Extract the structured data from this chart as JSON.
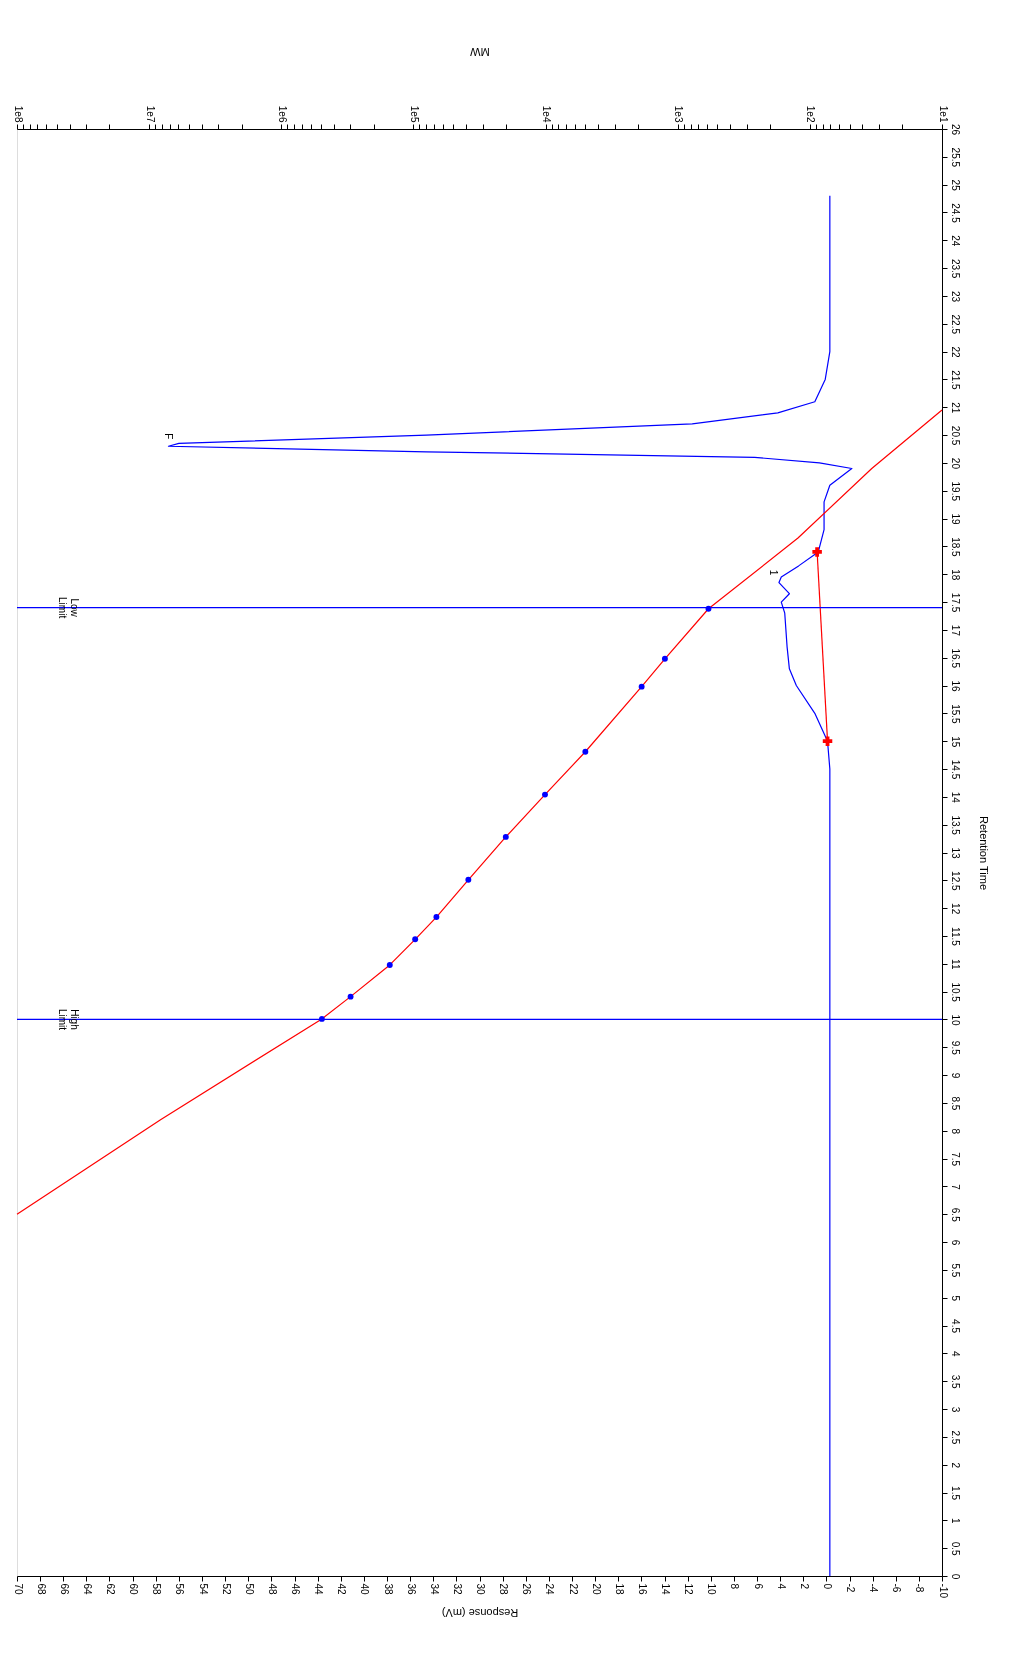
{
  "chart_data": {
    "type": "line",
    "xlabel": "Response (mV)",
    "ylabel": "Retention Time",
    "x2label": "MW",
    "xlim": [
      70,
      -10
    ],
    "xticks": [
      70,
      68,
      66,
      64,
      62,
      60,
      58,
      56,
      54,
      52,
      50,
      48,
      46,
      44,
      42,
      40,
      38,
      36,
      34,
      32,
      30,
      28,
      26,
      24,
      22,
      20,
      18,
      16,
      14,
      12,
      10,
      8,
      6,
      4,
      2,
      0,
      -2,
      -4,
      -6,
      -8,
      -10
    ],
    "ylim": [
      0,
      26
    ],
    "yticks": [
      0,
      0.5,
      1,
      1.5,
      2,
      2.5,
      3,
      3.5,
      4,
      4.5,
      5,
      5.5,
      6,
      6.5,
      7,
      7.5,
      8,
      8.5,
      9,
      9.5,
      10,
      10.5,
      11,
      11.5,
      12,
      12.5,
      13,
      13.5,
      14,
      14.5,
      15,
      15.5,
      16,
      16.5,
      17,
      17.5,
      18,
      18.5,
      19,
      19.5,
      20,
      20.5,
      21,
      21.5,
      22,
      22.5,
      23,
      23.5,
      24,
      24.5,
      25,
      25.5,
      26
    ],
    "log": "x2",
    "x2lim": [
      100000000,
      10
    ],
    "x2ticks": [
      {
        "value": 100000000,
        "label": "1e8"
      },
      {
        "value": 90000000,
        "label": null
      },
      {
        "value": 80000000,
        "label": null
      },
      {
        "value": 70000000,
        "label": null
      },
      {
        "value": 60000000,
        "label": null
      },
      {
        "value": 50000000,
        "label": null
      },
      {
        "value": 40000000,
        "label": null
      },
      {
        "value": 30000000,
        "label": null
      },
      {
        "value": 20000000,
        "label": null
      },
      {
        "value": 10000000,
        "label": "1e7"
      },
      {
        "value": 9000000,
        "label": null
      },
      {
        "value": 8000000,
        "label": null
      },
      {
        "value": 7000000,
        "label": null
      },
      {
        "value": 6000000,
        "label": null
      },
      {
        "value": 5000000,
        "label": null
      },
      {
        "value": 4000000,
        "label": null
      },
      {
        "value": 3000000,
        "label": null
      },
      {
        "value": 2000000,
        "label": null
      },
      {
        "value": 1000000,
        "label": "1e6"
      },
      {
        "value": 900000,
        "label": null
      },
      {
        "value": 800000,
        "label": null
      },
      {
        "value": 700000,
        "label": null
      },
      {
        "value": 600000,
        "label": null
      },
      {
        "value": 500000,
        "label": null
      },
      {
        "value": 400000,
        "label": null
      },
      {
        "value": 300000,
        "label": null
      },
      {
        "value": 200000,
        "label": null
      },
      {
        "value": 100000,
        "label": "1e5"
      },
      {
        "value": 90000,
        "label": null
      },
      {
        "value": 80000,
        "label": null
      },
      {
        "value": 70000,
        "label": null
      },
      {
        "value": 60000,
        "label": null
      },
      {
        "value": 50000,
        "label": null
      },
      {
        "value": 40000,
        "label": null
      },
      {
        "value": 30000,
        "label": null
      },
      {
        "value": 20000,
        "label": null
      },
      {
        "value": 10000,
        "label": "1e4"
      },
      {
        "value": 9000,
        "label": null
      },
      {
        "value": 8000,
        "label": null
      },
      {
        "value": 7000,
        "label": null
      },
      {
        "value": 6000,
        "label": null
      },
      {
        "value": 5000,
        "label": null
      },
      {
        "value": 4000,
        "label": null
      },
      {
        "value": 3000,
        "label": null
      },
      {
        "value": 2000,
        "label": null
      },
      {
        "value": 1000,
        "label": "1e3"
      },
      {
        "value": 900,
        "label": null
      },
      {
        "value": 800,
        "label": null
      },
      {
        "value": 700,
        "label": null
      },
      {
        "value": 600,
        "label": null
      },
      {
        "value": 500,
        "label": null
      },
      {
        "value": 400,
        "label": null
      },
      {
        "value": 300,
        "label": null
      },
      {
        "value": 200,
        "label": null
      },
      {
        "value": 100,
        "label": "1e2"
      },
      {
        "value": 90,
        "label": null
      },
      {
        "value": 80,
        "label": null
      },
      {
        "value": 70,
        "label": null
      },
      {
        "value": 60,
        "label": null
      },
      {
        "value": 50,
        "label": null
      },
      {
        "value": 40,
        "label": null
      },
      {
        "value": 30,
        "label": null
      },
      {
        "value": 20,
        "label": null
      },
      {
        "value": 10,
        "label": "1e1"
      }
    ],
    "grid": false,
    "series": [
      {
        "type": "line",
        "color": "#0000ff",
        "marker": "none",
        "x": [
          -0.3,
          -0.3,
          -0.3,
          -0.3,
          -0.1,
          1,
          2.6,
          3.2,
          3.4,
          3.6,
          3.9,
          3.2,
          4.1,
          3.9,
          2.4,
          0.7,
          0.2,
          0.2,
          -0.3,
          -2.2,
          0.6,
          6.2,
          34.6,
          56.9,
          56,
          34.6,
          11.6,
          4.2,
          1,
          0.1,
          -0.3,
          -0.3
        ],
        "values": [
          0,
          5,
          12.5,
          14.5,
          15,
          15.5,
          16,
          16.3,
          16.7,
          17.3,
          17.5,
          17.65,
          17.85,
          17.95,
          18.15,
          18.4,
          18.8,
          19.3,
          19.6,
          19.9,
          20,
          20.1,
          20.2,
          20.3,
          20.35,
          20.5,
          20.7,
          20.9,
          21.1,
          21.5,
          22,
          24.8
        ]
      },
      {
        "type": "line",
        "color": "#ff0000",
        "marker": "cross",
        "x": [
          -0.1,
          0.8
        ],
        "values": [
          15,
          18.4
        ]
      },
      {
        "type": "line",
        "color": "#ff0000",
        "marker": "none",
        "axis": "x2",
        "x": [
          100000000,
          8200000,
          493000,
          299000,
          151000,
          97000,
          67000,
          38400,
          20000,
          10100,
          5000,
          1875,
          1250,
          585,
          123,
          34,
          10
        ],
        "values": [
          6.5,
          8.2,
          10.01,
          10.41,
          10.98,
          11.44,
          11.84,
          12.51,
          13.28,
          14.04,
          14.81,
          15.98,
          16.48,
          17.38,
          18.65,
          19.9,
          20.95
        ]
      },
      {
        "type": "scatter",
        "color": "#0000ff",
        "marker": "circle",
        "axis": "x2",
        "x": [
          493000,
          299000,
          151000,
          97000,
          67000,
          38400,
          20000,
          10100,
          5000,
          1875,
          1250,
          585
        ],
        "values": [
          10.01,
          10.41,
          10.98,
          11.44,
          11.84,
          12.51,
          13.28,
          14.04,
          14.81,
          15.98,
          16.48,
          17.38
        ]
      }
    ],
    "ref_lines": [
      {
        "axis": "y",
        "value": 10.0,
        "label": "High Limit",
        "color": "#0000ff"
      },
      {
        "axis": "y",
        "value": 17.4,
        "label": "Low Limit",
        "color": "#0000ff"
      }
    ],
    "annotations": [
      {
        "text": "F",
        "x": 56.9,
        "y": 20.3
      },
      {
        "text": "1",
        "x": 4.6,
        "y": 17.85
      }
    ]
  }
}
